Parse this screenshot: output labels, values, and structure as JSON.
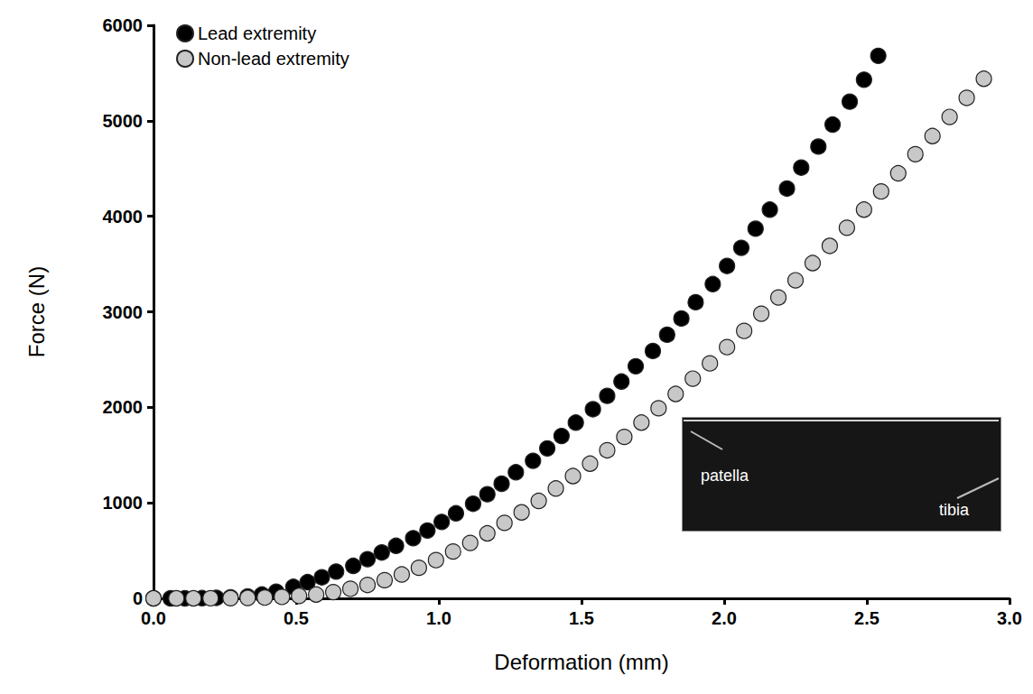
{
  "chart_data": {
    "type": "scatter",
    "x_label": "Deformation (mm)",
    "y_label": "Force (N)",
    "xlim": [
      0,
      3
    ],
    "xticks": [
      {
        "value": 0,
        "label": "0.0"
      },
      {
        "value": 0.5,
        "label": "0.5"
      },
      {
        "value": 1,
        "label": "1.0"
      },
      {
        "value": 1.5,
        "label": "1.5"
      },
      {
        "value": 2,
        "label": "2.0"
      },
      {
        "value": 2.5,
        "label": "2.5"
      },
      {
        "value": 3,
        "label": "3.0"
      }
    ],
    "ylim": [
      0,
      6000
    ],
    "yticks": [
      0,
      1000,
      2000,
      3000,
      4000,
      5000,
      6000
    ],
    "grid": false,
    "legend": "upper left",
    "annotations": [
      "patella",
      "tibia"
    ],
    "series": [
      {
        "name": "Lead extremity",
        "color": "#000000",
        "marker": "circle",
        "x": [
          0.0,
          0.06,
          0.11,
          0.17,
          0.22,
          0.27,
          0.33,
          0.38,
          0.43,
          0.49,
          0.54,
          0.59,
          0.64,
          0.7,
          0.75,
          0.8,
          0.85,
          0.91,
          0.96,
          1.01,
          1.06,
          1.12,
          1.17,
          1.22,
          1.27,
          1.33,
          1.38,
          1.43,
          1.48,
          1.54,
          1.59,
          1.64,
          1.69,
          1.75,
          1.8,
          1.85,
          1.9,
          1.96,
          2.01,
          2.06,
          2.11,
          2.16,
          2.22,
          2.27,
          2.33,
          2.38,
          2.44,
          2.49,
          2.54
        ],
        "values": [
          0,
          0,
          0,
          2,
          5,
          10,
          20,
          40,
          70,
          120,
          170,
          220,
          280,
          340,
          410,
          480,
          550,
          630,
          710,
          800,
          890,
          990,
          1090,
          1200,
          1320,
          1440,
          1570,
          1700,
          1840,
          1980,
          2120,
          2270,
          2430,
          2590,
          2760,
          2930,
          3100,
          3290,
          3480,
          3670,
          3870,
          4070,
          4290,
          4510,
          4730,
          4960,
          5200,
          5430,
          5680
        ]
      },
      {
        "name": "Non-lead extremity",
        "color": "#c8c8c8",
        "marker": "circle",
        "x": [
          0.0,
          0.08,
          0.14,
          0.2,
          0.27,
          0.33,
          0.39,
          0.45,
          0.51,
          0.57,
          0.63,
          0.69,
          0.75,
          0.81,
          0.87,
          0.93,
          0.99,
          1.05,
          1.11,
          1.17,
          1.23,
          1.29,
          1.35,
          1.41,
          1.47,
          1.53,
          1.59,
          1.65,
          1.71,
          1.77,
          1.83,
          1.89,
          1.95,
          2.01,
          2.07,
          2.13,
          2.19,
          2.25,
          2.31,
          2.37,
          2.43,
          2.49,
          2.55,
          2.61,
          2.67,
          2.73,
          2.79,
          2.85,
          2.91
        ],
        "values": [
          0,
          0,
          0,
          1,
          2,
          4,
          8,
          15,
          25,
          40,
          65,
          100,
          140,
          190,
          250,
          320,
          400,
          490,
          580,
          680,
          790,
          900,
          1020,
          1150,
          1280,
          1410,
          1550,
          1690,
          1840,
          1990,
          2140,
          2300,
          2460,
          2630,
          2800,
          2980,
          3150,
          3330,
          3510,
          3690,
          3880,
          4070,
          4260,
          4450,
          4650,
          4840,
          5040,
          5240,
          5440
        ]
      }
    ]
  }
}
